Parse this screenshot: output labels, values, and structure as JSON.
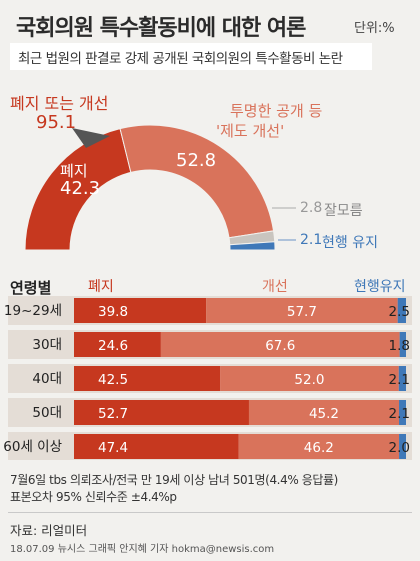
{
  "title": "국회의원 특수활동비에 대한 여론",
  "unit": "단위:%",
  "subtitle": "최근 법원의 판결로 강제 공개된 국회의원의 특수활동비 논란",
  "summary": {
    "abolish_or_improve_label": "폐지 또는 개선",
    "abolish_or_improve_value": "95.1",
    "abolish_label": "폐지",
    "abolish_value": "42.3",
    "improve_label_line1": "투명한 공개 등",
    "improve_label_line2": "'제도 개선'",
    "improve_value": "52.8",
    "unsure_value": "2.8",
    "unsure_label": "잘모름",
    "keep_value": "2.1",
    "keep_label": "현행 유지"
  },
  "age_section": {
    "header": "연령별",
    "col_abolish": "폐지",
    "col_improve": "개선",
    "col_keep": "현행유지"
  },
  "colors": {
    "abolish": "#c6381f",
    "improve": "#d9735b",
    "unsure": "#c9c5bf",
    "keep": "#3f78b8",
    "row_bg": "#e4ddd6"
  },
  "chart_data": [
    {
      "type": "pie",
      "title": "",
      "categories": [
        "폐지",
        "제도 개선",
        "잘모름",
        "현행 유지"
      ],
      "values": [
        42.3,
        52.8,
        2.8,
        2.1
      ]
    },
    {
      "type": "bar",
      "categories": [
        "19~29세",
        "30대",
        "40대",
        "50대",
        "60세 이상"
      ],
      "series": [
        {
          "name": "폐지",
          "values": [
            39.8,
            24.6,
            42.5,
            52.7,
            47.4
          ]
        },
        {
          "name": "개선",
          "values": [
            57.7,
            67.6,
            52.0,
            45.2,
            46.2
          ]
        },
        {
          "name": "현행유지",
          "values": [
            2.5,
            1.8,
            2.1,
            2.1,
            2.0
          ]
        }
      ],
      "labels": {
        "abolish": [
          "39.8",
          "24.6",
          "42.5",
          "52.7",
          "47.4"
        ],
        "improve": [
          "57.7",
          "67.6",
          "52.0",
          "45.2",
          "46.2"
        ],
        "keep": [
          "2.5",
          "1.8",
          "2.1",
          "2.1",
          "2.0"
        ]
      },
      "xlim": [
        0,
        100
      ]
    }
  ],
  "notes": {
    "line1": "7월6일  tbs 의뢰조사/전국 만 19세 이상 남녀 501명(4.4% 응답률)",
    "line2": "표본오차 95% 신뢰수준 ±4.4%p"
  },
  "source": "자료: 리얼미터",
  "credit": "18.07.09 뉴시스 그래픽 안지혜 기자 hokma@newsis.com"
}
